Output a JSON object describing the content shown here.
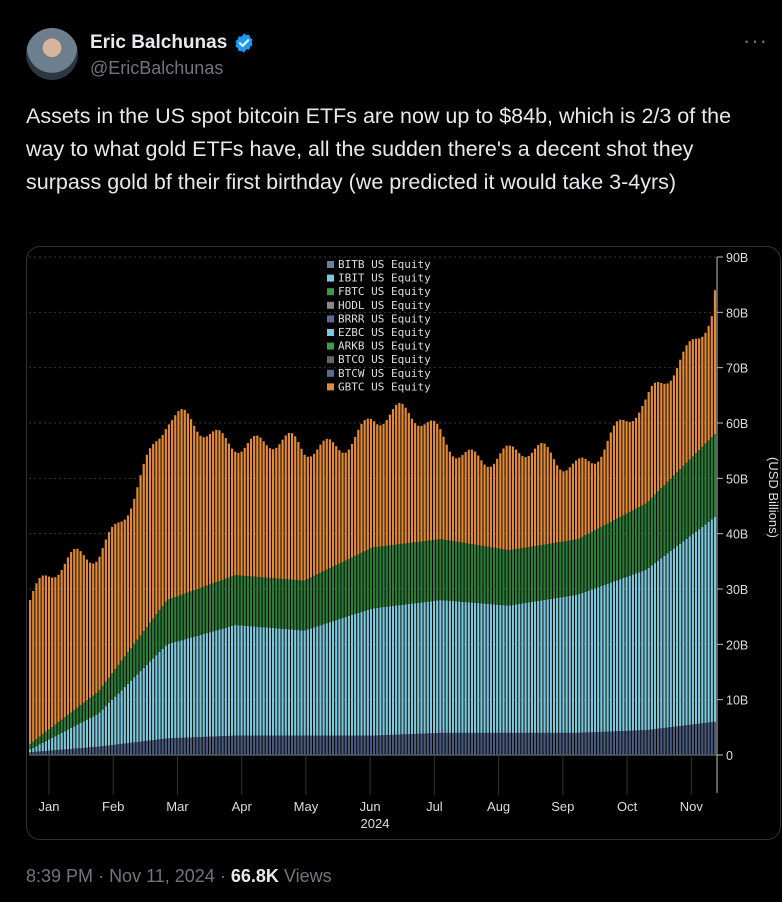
{
  "author": {
    "name": "Eric Balchunas",
    "handle": "@EricBalchunas",
    "verified": true
  },
  "tweet": {
    "text": "Assets in the US spot bitcoin ETFs are now up to $84b, which is 2/3 of the way to what gold ETFs have, all the sudden there's a decent shot they surpass gold bf their first birthday (we predicted it would take 3-4yrs)",
    "time": "8:39 PM",
    "date": "Nov 11, 2024",
    "views_count": "66.8K",
    "views_label": "Views"
  },
  "colors": {
    "gbtc": "#e08a3a",
    "ibit": "#7ec8dc",
    "fbtc": "#2e7d3a",
    "other": "#4a5a7a",
    "verified": "#1d9bf0"
  },
  "chart_data": {
    "type": "bar",
    "stacked": true,
    "x_range": [
      "2024-01",
      "2024-11"
    ],
    "xticks": [
      "Jan",
      "Feb",
      "Mar",
      "Apr",
      "May",
      "Jun",
      "Jul",
      "Aug",
      "Sep",
      "Oct",
      "Nov"
    ],
    "x_year_label": "2024",
    "yticks": [
      "0",
      "10B",
      "20B",
      "30B",
      "40B",
      "50B",
      "60B",
      "70B",
      "80B",
      "90B"
    ],
    "ylim": [
      0,
      90
    ],
    "ylabel": "(USD Billions)",
    "legend": [
      "BITB US Equity",
      "IBIT US Equity",
      "FBTC US Equity",
      "HODL US Equity",
      "BRRR US Equity",
      "EZBC US Equity",
      "ARKB US Equity",
      "BTCO US Equity",
      "BTCW US Equity",
      "GBTC US Equity"
    ],
    "legend_colors": [
      "#6b7fa0",
      "#7ec8dc",
      "#3f9a4e",
      "#8a8a8a",
      "#5b6b8f",
      "#7ec8dc",
      "#3f9a4e",
      "#666666",
      "#5b6b8f",
      "#e08a3a"
    ],
    "legend_position": "top-center",
    "months": [
      "Jan",
      "Feb",
      "Mar",
      "Apr",
      "May",
      "Jun",
      "Jul",
      "Aug",
      "Sep",
      "Oct",
      "Nov"
    ],
    "series": [
      {
        "name": "IBIT US Equity",
        "values": [
          0.5,
          6,
          17,
          20,
          19,
          23,
          24,
          23,
          25,
          29,
          37
        ]
      },
      {
        "name": "FBTC US Equity",
        "values": [
          1,
          4,
          8,
          9,
          9,
          11,
          11,
          10,
          10,
          12,
          15
        ]
      },
      {
        "name": "BITB US Equity",
        "values": [
          0.5,
          1.5,
          3,
          3.5,
          3.5,
          3.5,
          4,
          4,
          4,
          4.5,
          6
        ]
      },
      {
        "name": "GBTC US Equity",
        "values": [
          26,
          26,
          31,
          26,
          22,
          24,
          19,
          16,
          15,
          16,
          25
        ]
      }
    ],
    "last_total": 84
  }
}
